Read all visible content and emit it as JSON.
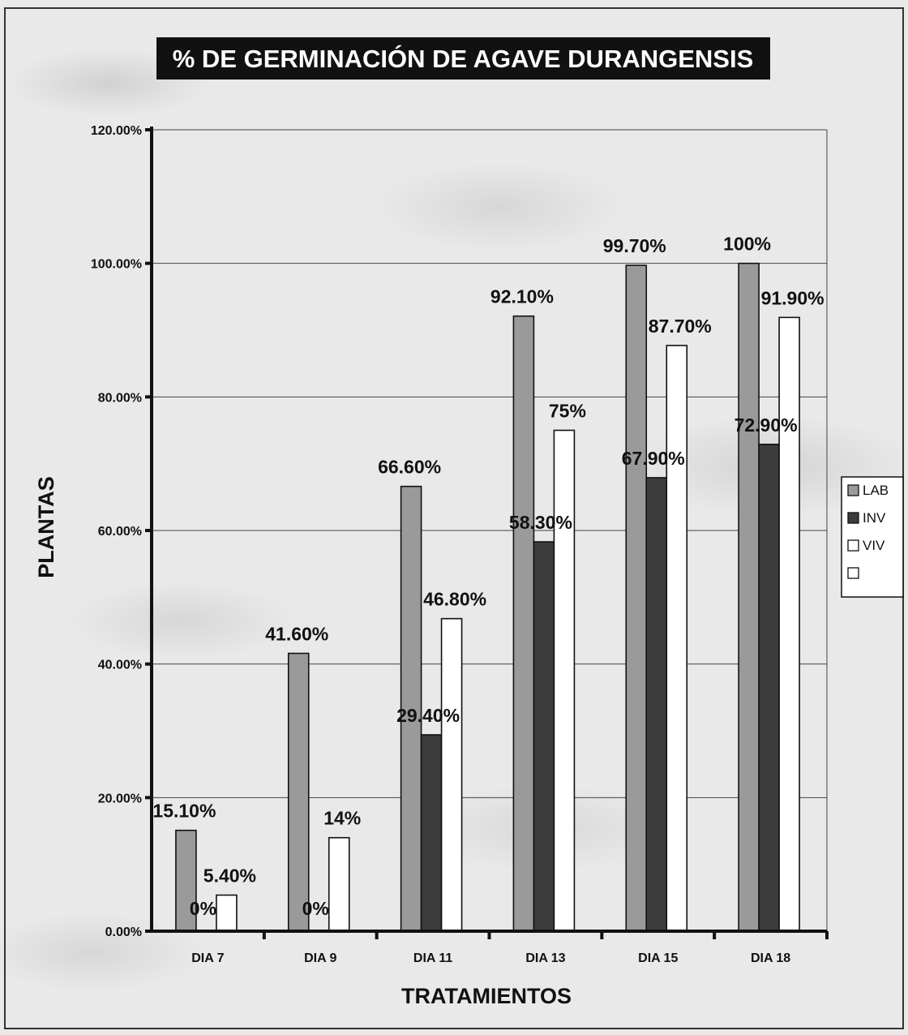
{
  "chart_data": {
    "type": "bar",
    "title": "% DE GERMINACIÓN DE AGAVE DURANGENSIS",
    "xlabel": "TRATAMIENTOS",
    "ylabel": "PLANTAS",
    "categories": [
      "DIA 7",
      "DIA 9",
      "DIA 11",
      "DIA 13",
      "DIA 15",
      "DIA 18"
    ],
    "series": [
      {
        "name": "LAB",
        "color": "#9a9a9a",
        "values": [
          15.1,
          41.6,
          66.6,
          92.1,
          99.7,
          100
        ],
        "labels": [
          "15.10%",
          "41.60%",
          "66.60%",
          "92.10%",
          "99.70%",
          "100%"
        ]
      },
      {
        "name": "INV",
        "color": "#3c3c3c",
        "values": [
          0,
          0,
          29.4,
          58.3,
          67.9,
          72.9
        ],
        "labels": [
          "0%",
          "0%",
          "29.40%",
          "58.30%",
          "67.90%",
          "72.90%"
        ]
      },
      {
        "name": "VIV",
        "color": "#ffffff",
        "values": [
          5.4,
          14,
          46.8,
          75,
          87.7,
          91.9
        ],
        "labels": [
          "5.40%",
          "14%",
          "46.80%",
          "75%",
          "87.70%",
          "91.90%"
        ]
      }
    ],
    "ylim": [
      0,
      120
    ],
    "yticks": [
      "0.00%",
      "20.00%",
      "40.00%",
      "60.00%",
      "80.00%",
      "100.00%",
      "120.00%"
    ],
    "grid": true,
    "legend_position": "right",
    "legend_extra_entry": ""
  }
}
